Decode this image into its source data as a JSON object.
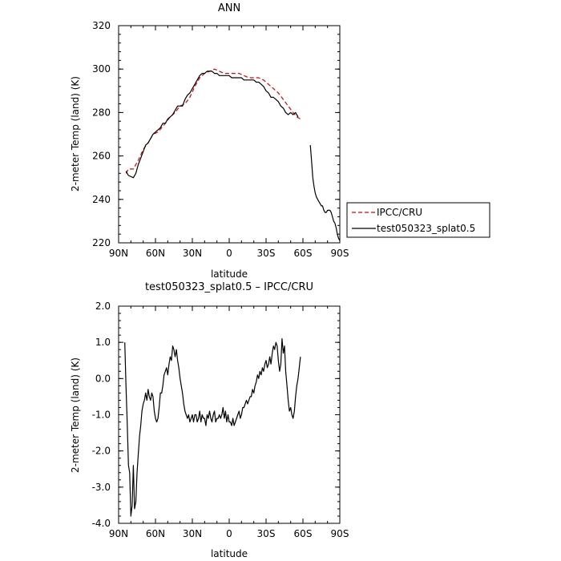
{
  "chart_data": [
    {
      "type": "line",
      "title": "ANN",
      "xlabel": "latitude",
      "ylabel": "2-meter Temp (land) (K)",
      "xlim": [
        90,
        -90
      ],
      "ylim": [
        220,
        320
      ],
      "xticks": [
        90,
        60,
        30,
        0,
        -30,
        -60,
        -90
      ],
      "xtick_labels": [
        "90N",
        "60N",
        "30N",
        "0",
        "30S",
        "60S",
        "90S"
      ],
      "yticks": [
        220,
        240,
        260,
        280,
        300,
        320
      ],
      "ytick_labels": [
        "220",
        "240",
        "260",
        "280",
        "300",
        "320"
      ],
      "legend": {
        "placement": "right-outside"
      },
      "series": [
        {
          "name": "IPCC/CRU",
          "color": "#e00000",
          "dash": true,
          "x": [
            84,
            82,
            78,
            74,
            70,
            66,
            62,
            58,
            55,
            52,
            48,
            44,
            40,
            36,
            32,
            28,
            24,
            20,
            16,
            12,
            8,
            4,
            0,
            -4,
            -8,
            -12,
            -16,
            -20,
            -24,
            -28,
            -32,
            -36,
            -40,
            -44,
            -48,
            -52,
            -55,
            -58
          ],
          "y": [
            252,
            254,
            254,
            258,
            263,
            266,
            270,
            271,
            273,
            275,
            278,
            280,
            283,
            284,
            287,
            292,
            296,
            298,
            299,
            300,
            299,
            298,
            298,
            298,
            298,
            297,
            296,
            296,
            296,
            295,
            293,
            291,
            289,
            286,
            283,
            280,
            278,
            277
          ]
        },
        {
          "name": "test050323_splat0.5",
          "color": "#000000",
          "dash": false,
          "segments": [
            {
              "x": [
                84,
                82,
                78,
                76,
                74,
                72,
                70,
                68,
                66,
                64,
                62,
                60,
                58,
                56,
                54,
                52,
                50,
                48,
                46,
                44,
                42,
                40,
                38,
                36,
                34,
                32,
                30,
                28,
                26,
                24,
                22,
                20,
                18,
                16,
                14,
                12,
                10,
                8,
                6,
                4,
                2,
                0,
                -2,
                -4,
                -6,
                -8,
                -10,
                -12,
                -14,
                -16,
                -18,
                -20,
                -22,
                -24,
                -26,
                -28,
                -30,
                -32,
                -34,
                -36,
                -38,
                -40,
                -42,
                -44,
                -46,
                -48,
                -50,
                -52,
                -54,
                -56
              ],
              "y": [
                253,
                251,
                250,
                252,
                256,
                259,
                262,
                265,
                266,
                268,
                270,
                271,
                272,
                273,
                275,
                275,
                277,
                278,
                279,
                281,
                283,
                283,
                283,
                286,
                288,
                289,
                291,
                293,
                295,
                297,
                298,
                298,
                299,
                299,
                299,
                298,
                298,
                297,
                297,
                297,
                297,
                297,
                296,
                296,
                296,
                296,
                296,
                295,
                295,
                295,
                295,
                295,
                294,
                294,
                293,
                292,
                290,
                289,
                287,
                287,
                286,
                285,
                283,
                282,
                280,
                279,
                280,
                279,
                280,
                278
              ]
            },
            {
              "x": [
                -66,
                -67,
                -68,
                -69,
                -70,
                -71,
                -72,
                -73,
                -74,
                -75,
                -76,
                -77,
                -78,
                -79,
                -80,
                -81,
                -82,
                -83,
                -84,
                -85,
                -86,
                -87,
                -88,
                -89,
                -90
              ],
              "y": [
                265,
                258,
                250,
                246,
                243,
                241,
                240,
                239,
                238,
                237,
                237,
                235,
                234,
                234,
                235,
                235,
                235,
                234,
                232,
                230,
                229,
                227,
                224,
                222,
                221
              ]
            }
          ]
        }
      ]
    },
    {
      "type": "line",
      "title": "test050323_splat0.5 – IPCC/CRU",
      "xlabel": "latitude",
      "ylabel": "2-meter Temp (land) (K)",
      "xlim": [
        90,
        -90
      ],
      "ylim": [
        -4.0,
        2.0
      ],
      "xticks": [
        90,
        60,
        30,
        0,
        -30,
        -60,
        -90
      ],
      "xtick_labels": [
        "90N",
        "60N",
        "30N",
        "0",
        "30S",
        "60S",
        "90S"
      ],
      "yticks": [
        -4,
        -3,
        -2,
        -1,
        0,
        1,
        2
      ],
      "ytick_labels": [
        "-4.0",
        "-3.0",
        "-2.0",
        "-1.0",
        "0.0",
        "1.0",
        "2.0"
      ],
      "series": [
        {
          "color": "#000000",
          "x": [
            85,
            84,
            83,
            82,
            81,
            80,
            79,
            78,
            77,
            76,
            75,
            74,
            73,
            72,
            71,
            70,
            69,
            68,
            67,
            66,
            65,
            64,
            63,
            62,
            61,
            60,
            59,
            58,
            57,
            56,
            55,
            54,
            53,
            52,
            51,
            50,
            49,
            48,
            47,
            46,
            45,
            44,
            43,
            42,
            41,
            40,
            39,
            38,
            37,
            36,
            35,
            34,
            33,
            32,
            31,
            30,
            29,
            28,
            27,
            26,
            25,
            24,
            23,
            22,
            21,
            20,
            19,
            18,
            17,
            16,
            15,
            14,
            13,
            12,
            11,
            10,
            9,
            8,
            7,
            6,
            5,
            4,
            3,
            2,
            1,
            0,
            -1,
            -2,
            -3,
            -4,
            -5,
            -6,
            -7,
            -8,
            -9,
            -10,
            -11,
            -12,
            -13,
            -14,
            -15,
            -16,
            -17,
            -18,
            -19,
            -20,
            -21,
            -22,
            -23,
            -24,
            -25,
            -26,
            -27,
            -28,
            -29,
            -30,
            -31,
            -32,
            -33,
            -34,
            -35,
            -36,
            -37,
            -38,
            -39,
            -40,
            -41,
            -42,
            -43,
            -44,
            -45,
            -46,
            -47,
            -48,
            -49,
            -50,
            -51,
            -52,
            -53,
            -54,
            -55,
            -56,
            -57,
            -58
          ],
          "y": [
            1.0,
            -0.2,
            -1.2,
            -2.4,
            -2.6,
            -3.8,
            -3.5,
            -2.4,
            -3.6,
            -3.4,
            -2.6,
            -2.1,
            -1.6,
            -1.3,
            -0.9,
            -0.7,
            -0.6,
            -0.4,
            -0.6,
            -0.3,
            -0.5,
            -0.6,
            -0.4,
            -0.5,
            -0.9,
            -1.1,
            -1.2,
            -1.1,
            -0.8,
            -0.4,
            -0.4,
            -0.2,
            0.1,
            0.2,
            0.3,
            0.1,
            0.4,
            0.6,
            0.5,
            0.9,
            0.8,
            0.6,
            0.8,
            0.5,
            0.3,
            0.0,
            -0.2,
            -0.4,
            -0.7,
            -0.9,
            -1.0,
            -1.1,
            -1.0,
            -1.2,
            -1.1,
            -1.0,
            -1.2,
            -1.0,
            -1.0,
            -1.2,
            -1.1,
            -0.9,
            -1.2,
            -1.0,
            -1.1,
            -1.1,
            -1.3,
            -1.0,
            -1.1,
            -0.9,
            -1.1,
            -1.2,
            -1.0,
            -0.9,
            -1.2,
            -1.1,
            -1.1,
            -1.0,
            -1.1,
            -1.0,
            -0.8,
            -1.1,
            -0.9,
            -1.2,
            -1.0,
            -1.2,
            -1.2,
            -1.3,
            -1.1,
            -1.3,
            -1.2,
            -1.1,
            -1.0,
            -0.9,
            -1.1,
            -1.0,
            -0.8,
            -0.8,
            -0.7,
            -0.6,
            -0.7,
            -0.6,
            -0.5,
            -0.5,
            -0.3,
            -0.4,
            -0.2,
            -0.1,
            0.1,
            0.0,
            0.2,
            0.1,
            0.3,
            0.2,
            0.4,
            0.5,
            0.3,
            0.4,
            0.6,
            0.4,
            0.7,
            0.9,
            0.8,
            1.0,
            0.9,
            0.5,
            0.2,
            0.4,
            1.1,
            0.7,
            0.9,
            0.2,
            -0.2,
            -0.6,
            -0.9,
            -0.8,
            -1.0,
            -1.1,
            -0.9,
            -0.5,
            -0.2,
            0.0,
            0.3,
            0.6
          ]
        }
      ]
    }
  ]
}
